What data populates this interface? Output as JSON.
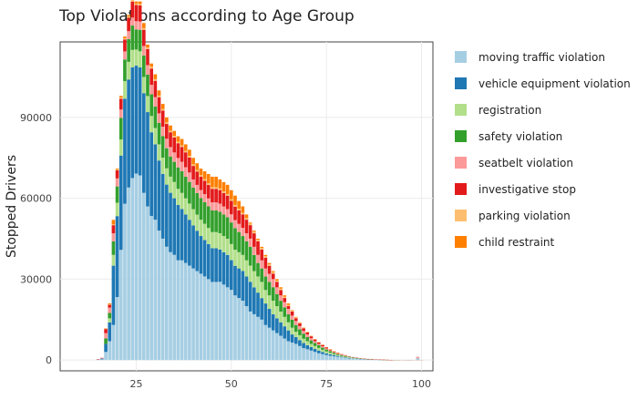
{
  "chart_data": {
    "type": "bar",
    "stacked": true,
    "title": "Top Violations according to Age Group",
    "xlabel": "",
    "ylabel": "Stopped Drivers",
    "xlim": [
      5,
      103
    ],
    "ylim": [
      -4000,
      118000
    ],
    "x_ticks": [
      25,
      50,
      75,
      100
    ],
    "y_ticks": [
      0,
      30000,
      60000,
      90000
    ],
    "x_tick_labels": [
      "25",
      "50",
      "75",
      "100"
    ],
    "y_tick_labels": [
      "0",
      "30000",
      "60000",
      "90000"
    ],
    "grid": true,
    "legend_position": "right",
    "x_start": 15,
    "totals": [
      300,
      800,
      9000,
      21000,
      52000,
      71000,
      98000,
      120000,
      128000,
      135000,
      133000,
      133000,
      125000,
      117000,
      110000,
      106000,
      100000,
      95000,
      90000,
      87000,
      85000,
      83000,
      82000,
      80000,
      78000,
      75000,
      73000,
      71000,
      70000,
      69000,
      68000,
      68000,
      67000,
      66000,
      65000,
      63000,
      61000,
      59000,
      57000,
      54000,
      51000,
      48000,
      45000,
      42000,
      39000,
      36000,
      33000,
      30000,
      27000,
      24000,
      21000,
      18500,
      16000,
      14000,
      12000,
      10500,
      9000,
      7800,
      6700,
      5700,
      4800,
      4000,
      3300,
      2700,
      2200,
      1800,
      1400,
      1100,
      900,
      700,
      550,
      420,
      320,
      240,
      180,
      130,
      90,
      60,
      40,
      25,
      15,
      10,
      6,
      4,
      3,
      2
    ],
    "series": [
      {
        "name": "moving traffic violation",
        "color": "#a6cee3",
        "shares": [
          0.333,
          0.333,
          0.333,
          0.333,
          0.25,
          0.329,
          0.417,
          0.483,
          0.5,
          0.5,
          0.52,
          0.515,
          0.496,
          0.487,
          0.486,
          0.491,
          0.48,
          0.474,
          0.467,
          0.46,
          0.459,
          0.446,
          0.451,
          0.45,
          0.449,
          0.453,
          0.452,
          0.451,
          0.443,
          0.435,
          0.426,
          0.426,
          0.433,
          0.424,
          0.415,
          0.413,
          0.393,
          0.39,
          0.386,
          0.37,
          0.353,
          0.354,
          0.356,
          0.357,
          0.333,
          0.333,
          0.333,
          0.333,
          0.333,
          0.333,
          0.333,
          0.351,
          0.375,
          0.371,
          0.367,
          0.381,
          0.389,
          0.385,
          0.373,
          0.386,
          0.396,
          0.4,
          0.424,
          0.444,
          0.455,
          0.444,
          0.429,
          0.455,
          0.444,
          0.429,
          0.455,
          0.476,
          0.5,
          0.5,
          0.5,
          0.538,
          0.556,
          0.5,
          0.5,
          0.6,
          0.667,
          0.6,
          0.5,
          0.5,
          0.333,
          0.5
        ]
      },
      {
        "name": "vehicle equipment violation",
        "color": "#1f78b4",
        "shares": [
          0.333,
          0.333,
          0.333,
          0.333,
          0.423,
          0.423,
          0.357,
          0.325,
          0.313,
          0.304,
          0.301,
          0.301,
          0.296,
          0.299,
          0.282,
          0.264,
          0.26,
          0.253,
          0.256,
          0.253,
          0.247,
          0.247,
          0.232,
          0.225,
          0.218,
          0.213,
          0.205,
          0.197,
          0.193,
          0.188,
          0.184,
          0.184,
          0.179,
          0.182,
          0.185,
          0.175,
          0.18,
          0.186,
          0.193,
          0.204,
          0.216,
          0.208,
          0.2,
          0.19,
          0.205,
          0.194,
          0.182,
          0.183,
          0.185,
          0.188,
          0.19,
          0.162,
          0.156,
          0.157,
          0.158,
          0.143,
          0.144,
          0.141,
          0.149,
          0.14,
          0.125,
          0.125,
          0.121,
          0.111,
          0.091,
          0.111,
          0.143,
          0.091,
          0.111,
          0.143,
          0.091,
          0.095,
          0.094,
          0.083,
          0.083,
          0.077,
          0.056,
          0.083,
          0.125,
          0.0,
          0.0,
          0.0,
          0.0,
          0.0,
          0.0,
          0.0
        ]
      },
      {
        "name": "registration",
        "color": "#b2df8a",
        "shares": [
          0.0,
          0.0,
          0.0,
          0.071,
          0.077,
          0.07,
          0.061,
          0.054,
          0.051,
          0.048,
          0.045,
          0.045,
          0.048,
          0.051,
          0.055,
          0.057,
          0.06,
          0.063,
          0.067,
          0.069,
          0.071,
          0.072,
          0.073,
          0.075,
          0.077,
          0.08,
          0.082,
          0.085,
          0.086,
          0.087,
          0.088,
          0.088,
          0.09,
          0.091,
          0.092,
          0.095,
          0.098,
          0.102,
          0.105,
          0.111,
          0.118,
          0.125,
          0.133,
          0.143,
          0.128,
          0.139,
          0.152,
          0.15,
          0.148,
          0.146,
          0.143,
          0.135,
          0.125,
          0.129,
          0.133,
          0.143,
          0.133,
          0.141,
          0.149,
          0.14,
          0.146,
          0.15,
          0.121,
          0.111,
          0.136,
          0.111,
          0.143,
          0.136,
          0.111,
          0.143,
          0.136,
          0.095,
          0.094,
          0.083,
          0.083,
          0.077,
          0.111,
          0.083,
          0.125,
          0.0,
          0.0,
          0.0,
          0.0,
          0.0,
          0.0,
          0.0
        ]
      },
      {
        "name": "safety violation",
        "color": "#33a02c",
        "shares": [
          0.0,
          0.0,
          0.222,
          0.095,
          0.096,
          0.085,
          0.082,
          0.067,
          0.066,
          0.067,
          0.056,
          0.06,
          0.064,
          0.068,
          0.073,
          0.075,
          0.08,
          0.084,
          0.083,
          0.086,
          0.088,
          0.096,
          0.098,
          0.1,
          0.103,
          0.107,
          0.11,
          0.113,
          0.114,
          0.116,
          0.118,
          0.118,
          0.119,
          0.121,
          0.123,
          0.127,
          0.131,
          0.127,
          0.123,
          0.13,
          0.137,
          0.125,
          0.111,
          0.119,
          0.128,
          0.139,
          0.152,
          0.15,
          0.148,
          0.146,
          0.143,
          0.162,
          0.156,
          0.157,
          0.158,
          0.143,
          0.144,
          0.141,
          0.149,
          0.14,
          0.146,
          0.15,
          0.152,
          0.148,
          0.136,
          0.167,
          0.143,
          0.136,
          0.167,
          0.143,
          0.136,
          0.143,
          0.125,
          0.167,
          0.167,
          0.154,
          0.111,
          0.167,
          0.125,
          0.2,
          0.0,
          0.2,
          0.167,
          0.0,
          0.333,
          0.0
        ]
      },
      {
        "name": "seatbelt violation",
        "color": "#fb9a99",
        "shares": [
          0.167,
          0.167,
          0.222,
          0.095,
          0.058,
          0.042,
          0.031,
          0.025,
          0.023,
          0.022,
          0.023,
          0.023,
          0.028,
          0.03,
          0.032,
          0.033,
          0.035,
          0.037,
          0.039,
          0.04,
          0.041,
          0.042,
          0.043,
          0.044,
          0.045,
          0.04,
          0.041,
          0.042,
          0.043,
          0.043,
          0.044,
          0.044,
          0.045,
          0.045,
          0.046,
          0.048,
          0.049,
          0.051,
          0.053,
          0.056,
          0.059,
          0.063,
          0.067,
          0.071,
          0.077,
          0.083,
          0.091,
          0.083,
          0.074,
          0.083,
          0.095,
          0.081,
          0.094,
          0.086,
          0.083,
          0.095,
          0.089,
          0.09,
          0.075,
          0.088,
          0.083,
          0.075,
          0.076,
          0.074,
          0.091,
          0.083,
          0.071,
          0.091,
          0.111,
          0.071,
          0.091,
          0.095,
          0.094,
          0.083,
          0.083,
          0.077,
          0.111,
          0.083,
          0.125,
          0.2,
          0.333,
          0.2,
          0.333,
          0.5,
          0.333,
          0.5
        ]
      },
      {
        "name": "investigative stop",
        "color": "#e31a1c",
        "shares": [
          0.167,
          0.167,
          0.167,
          0.048,
          0.058,
          0.042,
          0.041,
          0.037,
          0.039,
          0.044,
          0.045,
          0.045,
          0.048,
          0.051,
          0.055,
          0.057,
          0.06,
          0.063,
          0.061,
          0.063,
          0.065,
          0.066,
          0.067,
          0.069,
          0.071,
          0.067,
          0.068,
          0.07,
          0.071,
          0.072,
          0.074,
          0.074,
          0.075,
          0.076,
          0.077,
          0.079,
          0.082,
          0.085,
          0.088,
          0.093,
          0.098,
          0.104,
          0.111,
          0.095,
          0.103,
          0.083,
          0.061,
          0.067,
          0.074,
          0.063,
          0.048,
          0.081,
          0.063,
          0.071,
          0.083,
          0.067,
          0.078,
          0.077,
          0.075,
          0.088,
          0.083,
          0.075,
          0.076,
          0.074,
          0.091,
          0.083,
          0.071,
          0.091,
          0.056,
          0.071,
          0.091,
          0.095,
          0.094,
          0.083,
          0.083,
          0.077,
          0.056,
          0.083,
          0.0,
          0.0,
          0.0,
          0.0,
          0.0,
          0.0,
          0.0,
          0.0
        ]
      },
      {
        "name": "parking violation",
        "color": "#fdbf6f",
        "shares": [
          0.0,
          0.0,
          0.023,
          0.01,
          0.006,
          0.004,
          0.005,
          0.004,
          0.004,
          0.004,
          0.004,
          0.004,
          0.005,
          0.005,
          0.006,
          0.006,
          0.006,
          0.006,
          0.007,
          0.007,
          0.007,
          0.007,
          0.007,
          0.007,
          0.008,
          0.008,
          0.008,
          0.008,
          0.009,
          0.009,
          0.009,
          0.009,
          0.009,
          0.009,
          0.009,
          0.009,
          0.01,
          0.01,
          0.01,
          0.011,
          0.012,
          0.013,
          0.013,
          0.014,
          0.015,
          0.017,
          0.018,
          0.017,
          0.019,
          0.021,
          0.024,
          0.016,
          0.019,
          0.018,
          0.017,
          0.019,
          0.011,
          0.013,
          0.015,
          0.009,
          0.01,
          0.013,
          0.015,
          0.019,
          0.0,
          0.0,
          0.0,
          0.0,
          0.0,
          0.0,
          0.0,
          0.0,
          0.0,
          0.0,
          0.0,
          0.0,
          0.0,
          0.0,
          0.0,
          0.0,
          0.0,
          0.0,
          0.0,
          0.0,
          0.0,
          0.0
        ]
      },
      {
        "name": "child restraint",
        "color": "#ff7f00",
        "shares": [
          0.0,
          0.0,
          0.01,
          0.015,
          0.032,
          0.005,
          0.006,
          0.005,
          0.004,
          0.011,
          0.006,
          0.007,
          0.015,
          0.009,
          0.011,
          0.017,
          0.019,
          0.02,
          0.02,
          0.022,
          0.022,
          0.024,
          0.029,
          0.03,
          0.029,
          0.032,
          0.034,
          0.034,
          0.041,
          0.05,
          0.057,
          0.057,
          0.05,
          0.052,
          0.053,
          0.054,
          0.057,
          0.049,
          0.042,
          0.025,
          0.007,
          0.008,
          0.009,
          0.011,
          0.011,
          0.012,
          0.011,
          0.017,
          0.019,
          0.02,
          0.024,
          0.012,
          0.012,
          0.011,
          0.001,
          0.009,
          0.012,
          0.012,
          0.015,
          0.009,
          0.011,
          0.012,
          0.015,
          0.019,
          0.0,
          0.001,
          0.0,
          0.0,
          0.0,
          0.0,
          0.0,
          0.0,
          0.0,
          0.0,
          0.0,
          0.0,
          0.0,
          0.0,
          0.0,
          0.0,
          0.0,
          0.0,
          0.0,
          0.0,
          0.0,
          0.0
        ]
      }
    ],
    "outlier": {
      "x": 99,
      "value": 1200
    }
  }
}
